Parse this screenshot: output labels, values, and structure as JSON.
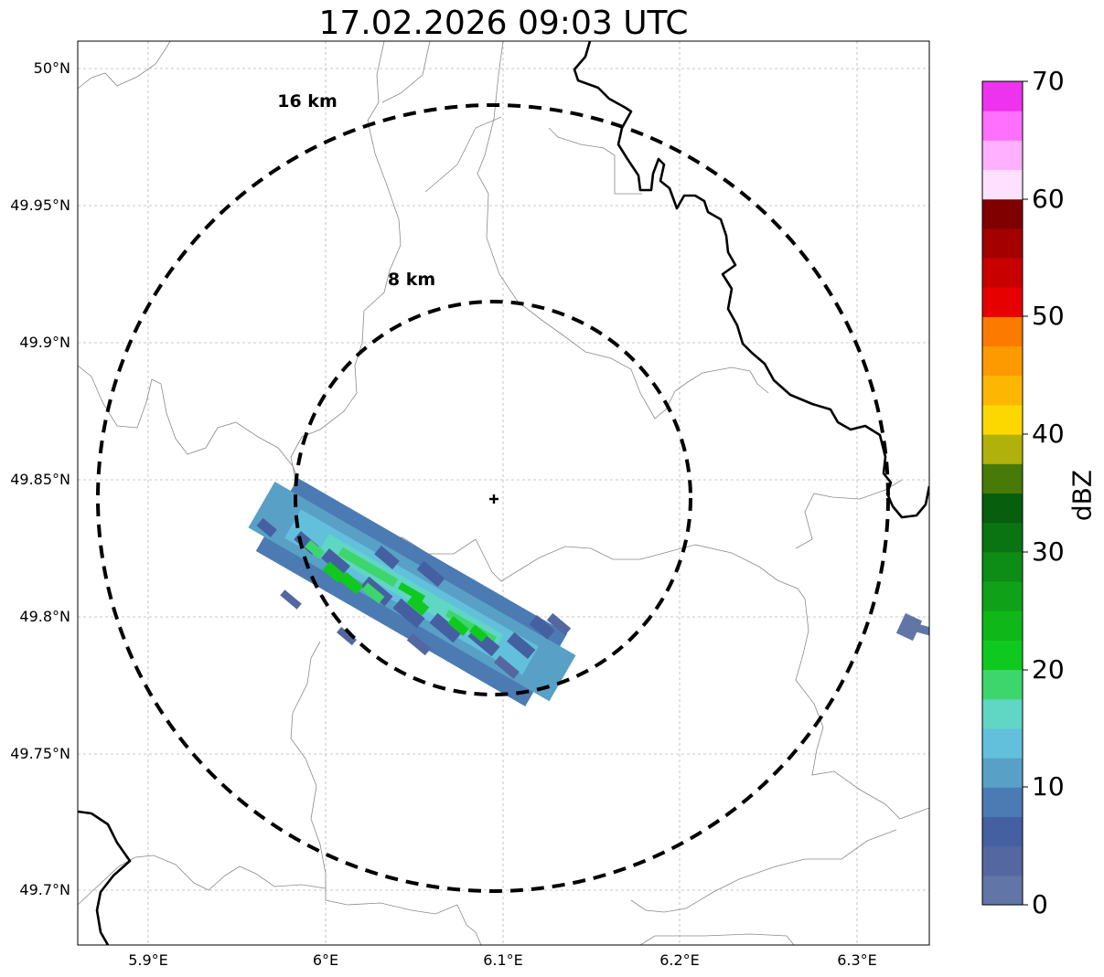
{
  "title": "17.02.2026 09:03 UTC",
  "map": {
    "lat_ticks": [
      "50°N",
      "49.95°N",
      "49.9°N",
      "49.85°N",
      "49.8°N",
      "49.75°N",
      "49.7°N"
    ],
    "lon_ticks": [
      "5.9°E",
      "6°E",
      "6.1°E",
      "6.2°E",
      "6.3°E"
    ],
    "range_rings": [
      {
        "label": "16 km",
        "radius_km": 16
      },
      {
        "label": "8 km",
        "radius_km": 8
      }
    ],
    "radar_site": {
      "lat": 49.843,
      "lon": 6.096
    }
  },
  "colorbar": {
    "label": "dBZ",
    "ticks": [
      "0",
      "10",
      "20",
      "30",
      "40",
      "50",
      "60",
      "70"
    ],
    "min": 0,
    "max": 70,
    "colors": [
      "#6175a6",
      "#5567a0",
      "#4560a1",
      "#4b7bb2",
      "#58a0c6",
      "#62c0dc",
      "#60d6c4",
      "#3dd66d",
      "#10c920",
      "#0fb818",
      "#0fa218",
      "#0d8c16",
      "#0a7412",
      "#075e0d",
      "#477a09",
      "#b0b10a",
      "#fdd800",
      "#fdb702",
      "#fd9a00",
      "#fd7a00",
      "#e60000",
      "#c80000",
      "#a40000",
      "#800000",
      "#ffe0ff",
      "#ffb0ff",
      "#ff70ff",
      "#ee33ee"
    ]
  }
}
